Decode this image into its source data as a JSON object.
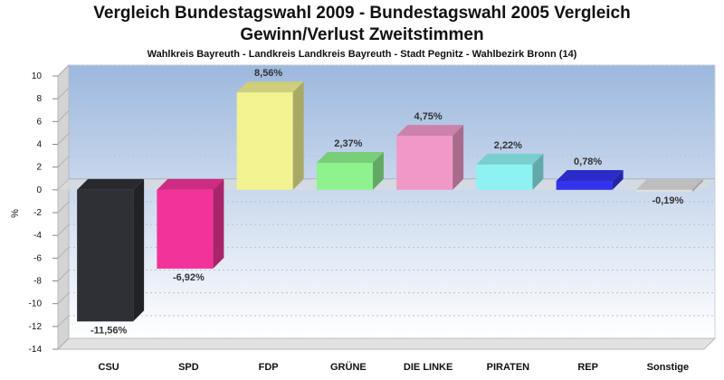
{
  "chart_data": {
    "type": "bar",
    "title": "Vergleich Bundestagswahl 2009 - Bundestagswahl 2005 Vergleich",
    "title2": "Gewinn/Verlust Zweitstimmen",
    "subtitle": "Wahlkreis Bayreuth - Landkreis Landkreis Bayreuth - Stadt Pegnitz - Wahlbezirk Bronn (14)",
    "ylabel": "%",
    "xlabel": "",
    "ylim": [
      -14,
      10
    ],
    "yticks": [
      10,
      8,
      6,
      4,
      2,
      0,
      -2,
      -4,
      -6,
      -8,
      -10,
      -12,
      -14
    ],
    "grid": true,
    "categories": [
      "CSU",
      "SPD",
      "FDP",
      "GRÜNE",
      "DIE LINKE",
      "PIRATEN",
      "REP",
      "Sonstige"
    ],
    "values": [
      -11.56,
      -6.92,
      8.56,
      2.37,
      4.75,
      2.22,
      0.78,
      -0.19
    ],
    "labels": [
      "-11,56%",
      "-6,92%",
      "8,56%",
      "2,37%",
      "4,75%",
      "2,22%",
      "0,78%",
      "-0,19%"
    ],
    "colors": [
      "#2e3035",
      "#f23399",
      "#f2f291",
      "#8ef28e",
      "#f099c8",
      "#8ef2f2",
      "#3333ee",
      "#e0e0e0"
    ]
  }
}
